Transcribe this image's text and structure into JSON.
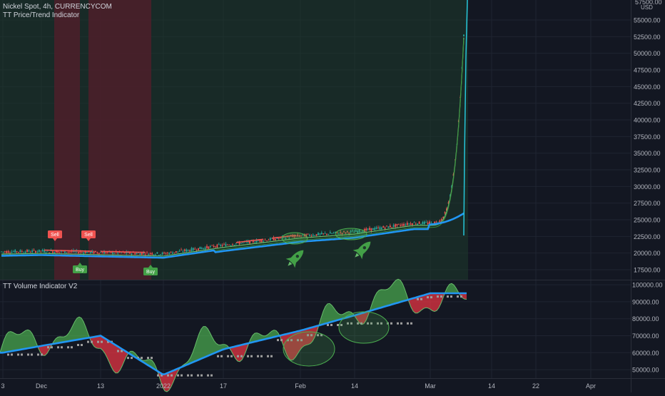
{
  "header": {
    "symbol_line": "Nickel Spot, 4h, CURRENCYCOM",
    "indicator_line": "TT Price/Trend Indicator",
    "volume_indicator": "TT Volume Indicator V2"
  },
  "price_axis": {
    "unit": "USD",
    "top_label": "57500.00",
    "ticks": [
      "55000.00",
      "52500.00",
      "50000.00",
      "47500.00",
      "45000.00",
      "42500.00",
      "40000.00",
      "37500.00",
      "35000.00",
      "32500.00",
      "30000.00",
      "27500.00",
      "25000.00",
      "22500.00",
      "20000.00",
      "17500.00"
    ]
  },
  "volume_axis": {
    "ticks": [
      "100000.00",
      "90000.00",
      "80000.00",
      "70000.00",
      "60000.00",
      "50000.00"
    ]
  },
  "time_axis": {
    "ticks": [
      "3",
      "Dec",
      "13",
      "2022",
      "17",
      "Feb",
      "14",
      "Mar",
      "14",
      "22",
      "Apr"
    ]
  },
  "colors": {
    "background": "#131722",
    "bull_zone": "#1e3a2b",
    "bear_zone": "#4a1f2a",
    "up_candle": "#26a69a",
    "down_candle": "#ef5350",
    "trend_line": "#2196f3",
    "green_fill": "#4caf50",
    "red_fill": "#f23645",
    "step_line": "#9e9e9e",
    "cyan_spike": "#26c6da"
  },
  "signals": {
    "sell_label": "Sell",
    "buy_label": "Buy"
  },
  "chart_data": [
    {
      "type": "line",
      "title": "Nickel Spot, 4h, CURRENCYCOM",
      "ylabel": "USD",
      "ylim": [
        16000,
        58000
      ],
      "x": [
        "3",
        "Dec",
        "13",
        "2022",
        "17",
        "Feb",
        "14",
        "Mar"
      ],
      "series": [
        {
          "name": "Nickel Spot",
          "values": [
            20200,
            20300,
            20100,
            19900,
            21200,
            22600,
            23200,
            24500
          ]
        }
      ],
      "last_move": {
        "values": [
          24500,
          27500,
          40000,
          57500
        ]
      }
    },
    {
      "type": "area",
      "title": "TT Volume Indicator V2",
      "ylim": [
        45000,
        103000
      ],
      "x": [
        "3",
        "Dec",
        "13",
        "2022",
        "17",
        "Feb",
        "14",
        "Mar"
      ],
      "series": [
        {
          "name": "TT Volume Indicator V2",
          "values": [
            60000,
            64000,
            70000,
            47000,
            62000,
            73000,
            82000,
            95000
          ]
        }
      ]
    }
  ]
}
